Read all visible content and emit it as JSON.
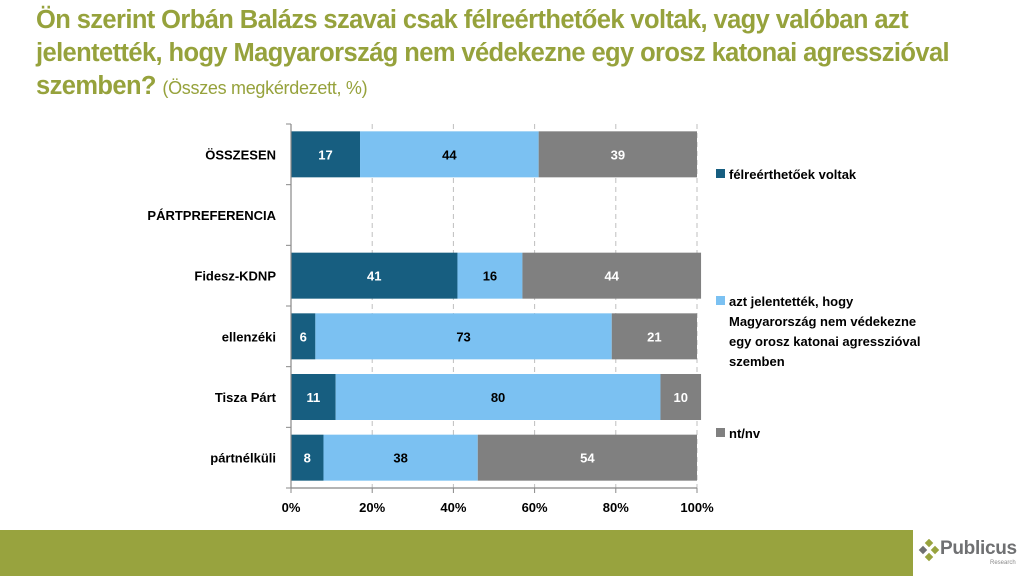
{
  "title": {
    "main": "Ön szerint Orbán Balázs szavai csak félreérthetőek voltak, vagy valóban azt jelentették, hogy Magyarország nem védekezne egy orosz katonai agresszióval szemben?",
    "sub": "(Összes megkérdezett, %)"
  },
  "chart_data": {
    "type": "bar",
    "orientation": "horizontal",
    "stacked": true,
    "categories": [
      "ÖSSZESEN",
      "PÁRTPREFERENCIA",
      "Fidesz-KDNP",
      "ellenzéki",
      "Tisza Párt",
      "pártnélküli"
    ],
    "series": [
      {
        "name": "félreérthetőek voltak",
        "color": "#175e80",
        "label_color": "#ffffff",
        "values": [
          17,
          null,
          41,
          6,
          11,
          8
        ]
      },
      {
        "name": "azt jelentették, hogy Magyarország nem védekezne egy orosz katonai agresszióval szemben",
        "color": "#7bc1f2",
        "label_color": "#000000",
        "values": [
          44,
          null,
          16,
          73,
          80,
          38
        ]
      },
      {
        "name": "nt/nv",
        "color": "#808080",
        "label_color": "#ffffff",
        "values": [
          39,
          null,
          44,
          21,
          10,
          54
        ]
      }
    ],
    "xlim": [
      0,
      100
    ],
    "xticks": [
      "0%",
      "20%",
      "40%",
      "60%",
      "80%",
      "100%"
    ],
    "grid": true,
    "legend": "right",
    "legend_lines": [
      [
        "félreérthetőek voltak"
      ],
      [
        "azt jelentették, hogy",
        "Magyarország nem védekezne",
        "egy orosz katonai agresszióval",
        "szemben"
      ],
      [
        "nt/nv"
      ]
    ]
  },
  "brand": {
    "name": "Publicus",
    "tagline": "Research",
    "accent": "#98a33e"
  }
}
